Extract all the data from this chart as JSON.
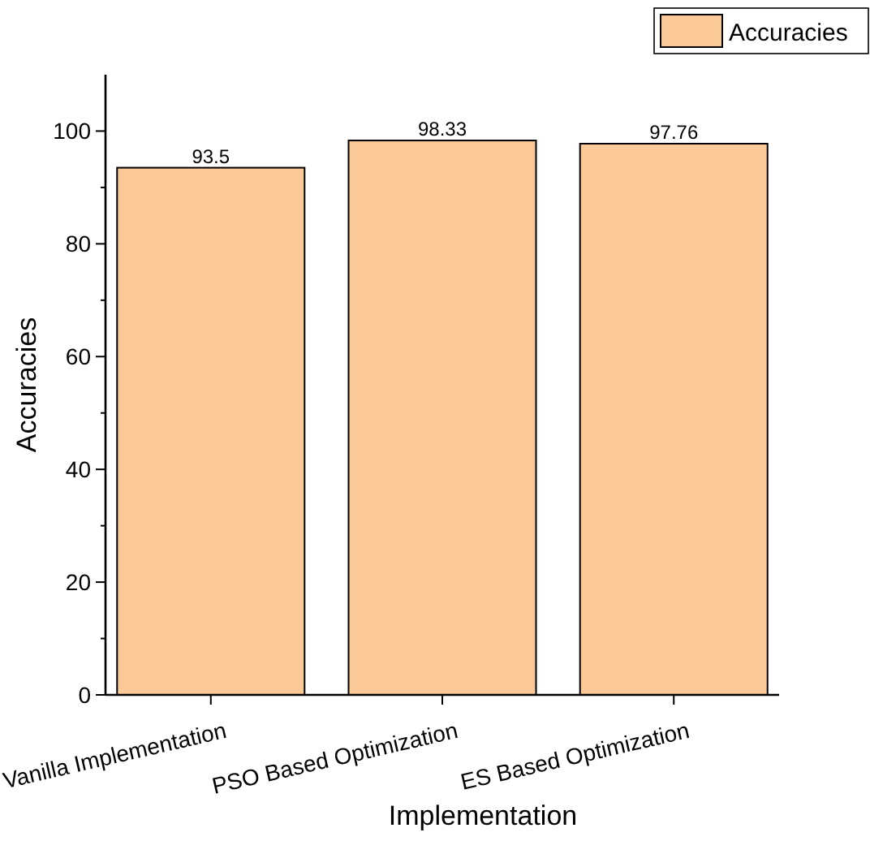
{
  "chart_data": {
    "type": "bar",
    "xlabel": "Implementation",
    "ylabel": "Accuracies",
    "categories": [
      "Vanilla Implementation",
      "PSO Based Optimization",
      "ES Based Optimization"
    ],
    "series": [
      {
        "name": "Accuracies",
        "color": "#fbc898",
        "values": [
          93.5,
          98.33,
          97.76
        ]
      }
    ],
    "ylim": [
      0,
      110
    ],
    "yticks": [
      0,
      20,
      40,
      60,
      80,
      100
    ],
    "data_labels": true,
    "legend": "top right",
    "grid": false
  }
}
